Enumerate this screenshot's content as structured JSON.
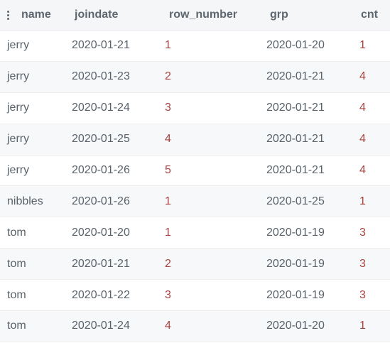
{
  "table": {
    "columns": [
      "name",
      "joindate",
      "row_number",
      "grp",
      "cnt"
    ],
    "menu_icon": "kebab-menu-icon",
    "rows": [
      {
        "name": "jerry",
        "joindate": "2020-01-21",
        "row_number": "1",
        "grp": "2020-01-20",
        "cnt": "1"
      },
      {
        "name": "jerry",
        "joindate": "2020-01-23",
        "row_number": "2",
        "grp": "2020-01-21",
        "cnt": "4"
      },
      {
        "name": "jerry",
        "joindate": "2020-01-24",
        "row_number": "3",
        "grp": "2020-01-21",
        "cnt": "4"
      },
      {
        "name": "jerry",
        "joindate": "2020-01-25",
        "row_number": "4",
        "grp": "2020-01-21",
        "cnt": "4"
      },
      {
        "name": "jerry",
        "joindate": "2020-01-26",
        "row_number": "5",
        "grp": "2020-01-21",
        "cnt": "4"
      },
      {
        "name": "nibbles",
        "joindate": "2020-01-26",
        "row_number": "1",
        "grp": "2020-01-25",
        "cnt": "1"
      },
      {
        "name": "tom",
        "joindate": "2020-01-20",
        "row_number": "1",
        "grp": "2020-01-19",
        "cnt": "3"
      },
      {
        "name": "tom",
        "joindate": "2020-01-21",
        "row_number": "2",
        "grp": "2020-01-19",
        "cnt": "3"
      },
      {
        "name": "tom",
        "joindate": "2020-01-22",
        "row_number": "3",
        "grp": "2020-01-19",
        "cnt": "3"
      },
      {
        "name": "tom",
        "joindate": "2020-01-24",
        "row_number": "4",
        "grp": "2020-01-20",
        "cnt": "1"
      }
    ],
    "colors": {
      "header_bg": "#f5f6f7",
      "alt_row_bg": "#f7f8f9",
      "text": "#59626a",
      "numeric": "#a8433f"
    }
  }
}
